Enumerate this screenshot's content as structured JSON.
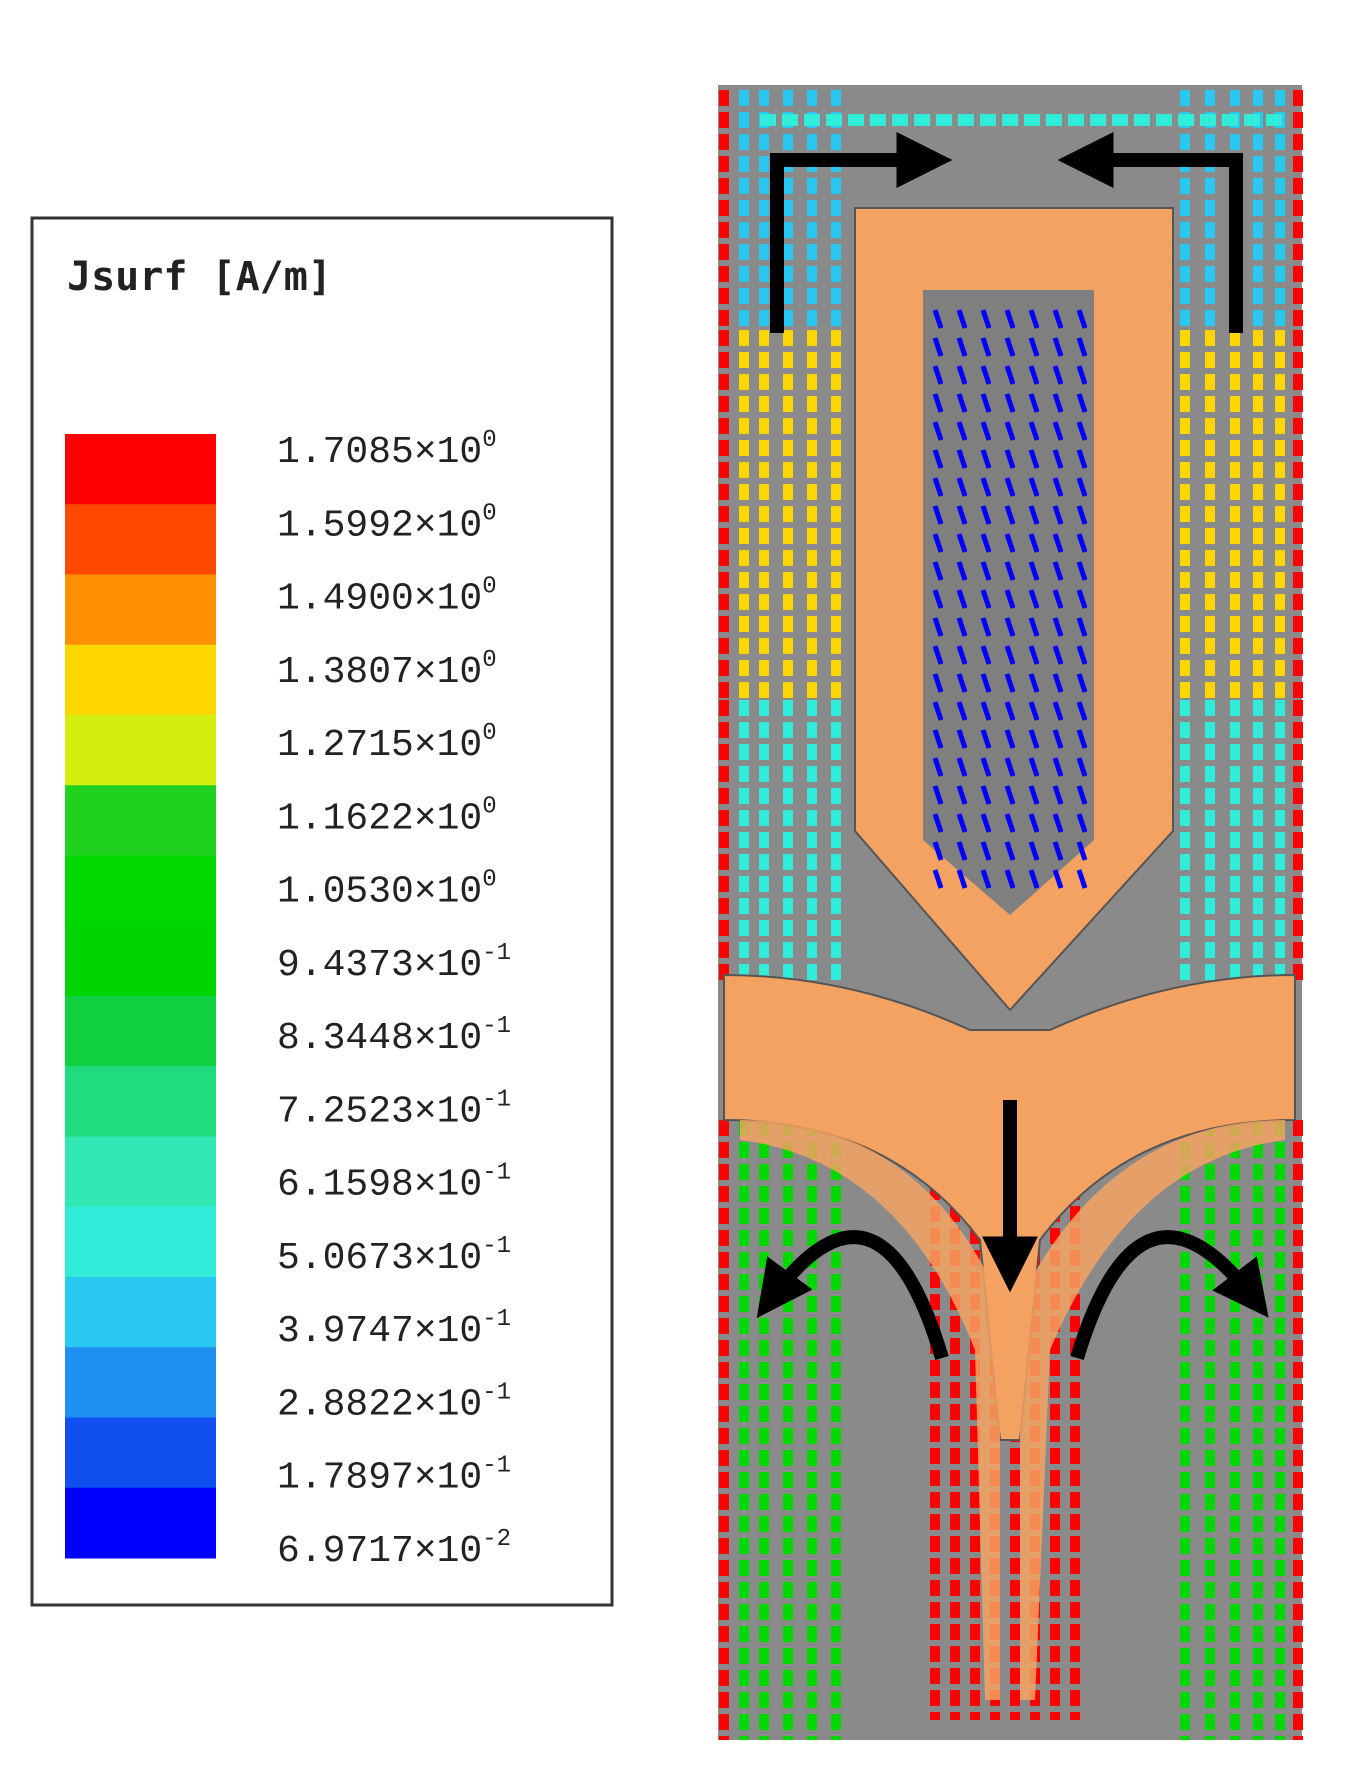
{
  "legend": {
    "title": "Jsurf [A/m]",
    "colors": [
      "#ff0000",
      "#ff4800",
      "#ff9000",
      "#ffd700",
      "#d4ee10",
      "#1fd21f",
      "#00d800",
      "#00d400",
      "#10d040",
      "#20dc80",
      "#30e8b4",
      "#30ecd8",
      "#28c8f0",
      "#2090f0",
      "#1050f0",
      "#0000ff"
    ],
    "labels": [
      {
        "base": "1.7085×10",
        "exponent": "0"
      },
      {
        "base": "1.5992×10",
        "exponent": "0"
      },
      {
        "base": "1.4900×10",
        "exponent": "0"
      },
      {
        "base": "1.3807×10",
        "exponent": "0"
      },
      {
        "base": "1.2715×10",
        "exponent": "0"
      },
      {
        "base": "1.1622×10",
        "exponent": "0"
      },
      {
        "base": "1.0530×10",
        "exponent": "0"
      },
      {
        "base": "9.4373×10",
        "exponent": "-1"
      },
      {
        "base": "8.3448×10",
        "exponent": "-1"
      },
      {
        "base": "7.2523×10",
        "exponent": "-1"
      },
      {
        "base": "6.1598×10",
        "exponent": "-1"
      },
      {
        "base": "5.0673×10",
        "exponent": "-1"
      },
      {
        "base": "3.9747×10",
        "exponent": "-1"
      },
      {
        "base": "2.8822×10",
        "exponent": "-1"
      },
      {
        "base": "1.7897×10",
        "exponent": "-1"
      },
      {
        "base": "6.9717×10",
        "exponent": "-2"
      }
    ]
  }
}
